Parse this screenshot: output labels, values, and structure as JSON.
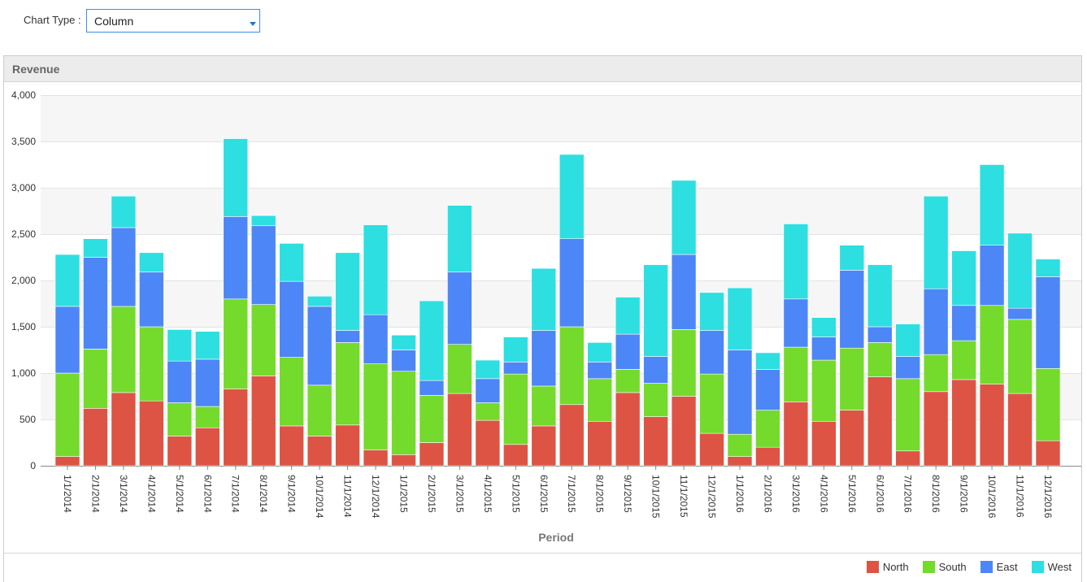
{
  "toolbar": {
    "chart_type_label": "Chart Type :",
    "chart_type_value": "Column"
  },
  "panel": {
    "title": "Revenue"
  },
  "legend": {
    "items": [
      {
        "label": "North",
        "color": "#dd5444"
      },
      {
        "label": "South",
        "color": "#74da2c"
      },
      {
        "label": "East",
        "color": "#4d86f6"
      },
      {
        "label": "West",
        "color": "#2ddfe0"
      }
    ]
  },
  "chart_data": {
    "type": "bar",
    "stacked": true,
    "xlabel": "Period",
    "ylabel": "",
    "ylim": [
      0,
      4000
    ],
    "yticks": [
      0,
      500,
      1000,
      1500,
      2000,
      2500,
      3000,
      3500,
      4000
    ],
    "ytick_labels": [
      "0",
      "500",
      "1,000",
      "1,500",
      "2,000",
      "2,500",
      "3,000",
      "3,500",
      "4,000"
    ],
    "grid": true,
    "legend_position": "bottom-right",
    "categories": [
      "1/1/2014",
      "2/1/2014",
      "3/1/2014",
      "4/1/2014",
      "5/1/2014",
      "6/1/2014",
      "7/1/2014",
      "8/1/2014",
      "9/1/2014",
      "10/1/2014",
      "11/1/2014",
      "12/1/2014",
      "1/1/2015",
      "2/1/2015",
      "3/1/2015",
      "4/1/2015",
      "5/1/2015",
      "6/1/2015",
      "7/1/2015",
      "8/1/2015",
      "9/1/2015",
      "10/1/2015",
      "11/1/2015",
      "12/1/2015",
      "1/1/2016",
      "2/1/2016",
      "3/1/2016",
      "4/1/2016",
      "5/1/2016",
      "6/1/2016",
      "7/1/2016",
      "8/1/2016",
      "9/1/2016",
      "10/1/2016",
      "11/1/2016",
      "12/1/2016"
    ],
    "series": [
      {
        "name": "North",
        "color": "#dd5444",
        "values": [
          100,
          620,
          790,
          700,
          320,
          410,
          830,
          970,
          430,
          320,
          440,
          170,
          120,
          250,
          780,
          490,
          230,
          430,
          660,
          480,
          790,
          530,
          750,
          350,
          100,
          200,
          690,
          480,
          600,
          960,
          160,
          800,
          930,
          880,
          780,
          270
        ]
      },
      {
        "name": "South",
        "color": "#74da2c",
        "values": [
          900,
          640,
          930,
          800,
          360,
          230,
          970,
          770,
          740,
          550,
          890,
          930,
          900,
          510,
          530,
          190,
          760,
          430,
          840,
          460,
          250,
          360,
          720,
          640,
          240,
          400,
          590,
          660,
          670,
          370,
          780,
          400,
          420,
          850,
          800,
          780
        ]
      },
      {
        "name": "East",
        "color": "#4d86f6",
        "values": [
          720,
          990,
          850,
          590,
          450,
          510,
          890,
          850,
          820,
          850,
          130,
          530,
          230,
          160,
          780,
          260,
          130,
          600,
          950,
          180,
          380,
          290,
          810,
          470,
          910,
          440,
          520,
          250,
          840,
          170,
          240,
          710,
          380,
          650,
          120,
          990
        ]
      },
      {
        "name": "West",
        "color": "#2ddfe0",
        "values": [
          560,
          200,
          340,
          210,
          340,
          300,
          840,
          110,
          410,
          110,
          840,
          970,
          160,
          860,
          720,
          200,
          270,
          670,
          910,
          210,
          400,
          990,
          800,
          410,
          670,
          180,
          810,
          210,
          270,
          670,
          350,
          1000,
          590,
          870,
          810,
          190
        ]
      }
    ]
  }
}
